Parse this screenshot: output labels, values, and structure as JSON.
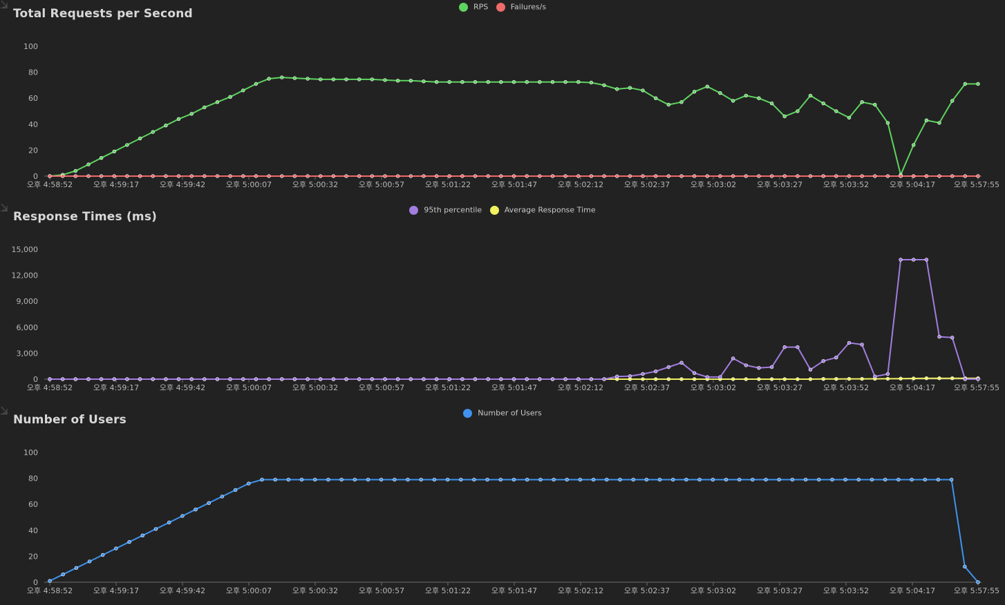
{
  "colors": {
    "background": "#222222",
    "axis": "#6e6e6e",
    "green": "#5fd35f",
    "red": "#ee6b6b",
    "purple": "#a27de0",
    "yellow": "#f0f060",
    "blue": "#3f93ee"
  },
  "icons": {
    "download": "download-icon"
  },
  "chart_data": [
    {
      "type": "line",
      "title": "Total Requests per Second",
      "ylim": [
        0,
        100
      ],
      "yticks": [
        "0",
        "20",
        "40",
        "60",
        "80",
        "100"
      ],
      "ytick_values": [
        0,
        20,
        40,
        60,
        80,
        100
      ],
      "x_tick_labels": [
        "오후 4:58:52",
        "오후 4:59:17",
        "오후 4:59:42",
        "오후 5:00:07",
        "오후 5:00:32",
        "오후 5:00:57",
        "오후 5:01:22",
        "오후 5:01:47",
        "오후 5:02:12",
        "오후 5:02:37",
        "오후 5:03:02",
        "오후 5:03:27",
        "오후 5:03:52",
        "오후 5:04:17",
        "오후 5:57:55"
      ],
      "legend_position": "top-center",
      "series": [
        {
          "name": "RPS",
          "color": "#5fd35f",
          "values": [
            0,
            1,
            4,
            9,
            14,
            19,
            24,
            29,
            34,
            39,
            44,
            48,
            53,
            57,
            61,
            66,
            71,
            75,
            76,
            75.5,
            75,
            74.5,
            74.5,
            74.5,
            74.5,
            74.5,
            74,
            73.5,
            73.5,
            73,
            72.5,
            72.5,
            72.5,
            72.5,
            72.5,
            72.5,
            72.5,
            72.5,
            72.5,
            72.5,
            72.5,
            72.5,
            72,
            70,
            67,
            68,
            66,
            60,
            55,
            57,
            65,
            69,
            64,
            58,
            62,
            60,
            56,
            46,
            50,
            62,
            56,
            50,
            45,
            57,
            55,
            41,
            1,
            24,
            43,
            41,
            58,
            71,
            71
          ]
        },
        {
          "name": "Failures/s",
          "color": "#ee6b6b",
          "values": [
            0,
            0,
            0,
            0,
            0,
            0,
            0,
            0,
            0,
            0,
            0,
            0,
            0,
            0,
            0,
            0,
            0,
            0,
            0,
            0,
            0,
            0,
            0,
            0,
            0,
            0,
            0,
            0,
            0,
            0,
            0,
            0,
            0,
            0,
            0,
            0,
            0,
            0,
            0,
            0,
            0,
            0,
            0,
            0,
            0,
            0,
            0,
            0,
            0,
            0,
            0,
            0,
            0,
            0,
            0,
            0,
            0,
            0,
            0,
            0,
            0,
            0,
            0,
            0,
            0,
            0,
            0,
            0,
            0,
            0,
            0,
            0,
            0
          ]
        }
      ]
    },
    {
      "type": "line",
      "title": "Response Times (ms)",
      "ylim": [
        0,
        15000
      ],
      "yticks": [
        "0",
        "3,000",
        "6,000",
        "9,000",
        "12,000",
        "15,000"
      ],
      "ytick_values": [
        0,
        3000,
        6000,
        9000,
        12000,
        15000
      ],
      "x_tick_labels": [
        "오후 4:58:52",
        "오후 4:59:17",
        "오후 4:59:42",
        "오후 5:00:07",
        "오후 5:00:32",
        "오후 5:00:57",
        "오후 5:01:22",
        "오후 5:01:47",
        "오후 5:02:12",
        "오후 5:02:37",
        "오후 5:03:02",
        "오후 5:03:27",
        "오후 5:03:52",
        "오후 5:04:17",
        "오후 5:57:55"
      ],
      "legend_position": "top-center",
      "series": [
        {
          "name": "95th percentile",
          "color": "#a27de0",
          "values": [
            0,
            0,
            0,
            0,
            0,
            0,
            0,
            0,
            0,
            0,
            0,
            0,
            0,
            0,
            0,
            0,
            0,
            0,
            0,
            0,
            0,
            0,
            0,
            0,
            0,
            0,
            0,
            0,
            0,
            0,
            0,
            0,
            0,
            0,
            0,
            0,
            0,
            0,
            0,
            0,
            0,
            0,
            0,
            0,
            300,
            350,
            600,
            900,
            1400,
            1900,
            700,
            250,
            250,
            2400,
            1600,
            1300,
            1400,
            3700,
            3700,
            1100,
            2100,
            2500,
            4200,
            4000,
            300,
            600,
            13800,
            13800,
            13800,
            4900,
            4800,
            0,
            0
          ]
        },
        {
          "name": "Average Response Time",
          "color": "#f0f060",
          "values": [
            0,
            0,
            0,
            0,
            0,
            0,
            0,
            0,
            0,
            0,
            0,
            0,
            0,
            0,
            0,
            0,
            0,
            0,
            0,
            0,
            0,
            0,
            0,
            0,
            0,
            0,
            0,
            0,
            0,
            0,
            0,
            0,
            0,
            0,
            0,
            0,
            0,
            0,
            0,
            0,
            0,
            0,
            0,
            0,
            0,
            0,
            0,
            0,
            0,
            0,
            0,
            0,
            0,
            0,
            0,
            0,
            0,
            0,
            0,
            0,
            20,
            20,
            30,
            30,
            40,
            50,
            60,
            80,
            100,
            100,
            100,
            100,
            100
          ]
        }
      ]
    },
    {
      "type": "line",
      "title": "Number of Users",
      "ylim": [
        0,
        100
      ],
      "yticks": [
        "0",
        "20",
        "40",
        "60",
        "80",
        "100"
      ],
      "ytick_values": [
        0,
        20,
        40,
        60,
        80,
        100
      ],
      "x_tick_labels": [
        "오후 4:58:52",
        "오후 4:59:17",
        "오후 4:59:42",
        "오후 5:00:07",
        "오후 5:00:32",
        "오후 5:00:57",
        "오후 5:01:22",
        "오후 5:01:47",
        "오후 5:02:12",
        "오후 5:02:37",
        "오후 5:03:02",
        "오후 5:03:27",
        "오후 5:03:52",
        "오후 5:04:17",
        "오후 5:57:55"
      ],
      "legend_position": "top-center",
      "series": [
        {
          "name": "Number of Users",
          "color": "#3f93ee",
          "values": [
            1,
            6,
            11,
            16,
            21,
            26,
            31,
            36,
            41,
            46,
            51,
            56,
            61,
            66,
            71,
            76,
            79,
            79,
            79,
            79,
            79,
            79,
            79,
            79,
            79,
            79,
            79,
            79,
            79,
            79,
            79,
            79,
            79,
            79,
            79,
            79,
            79,
            79,
            79,
            79,
            79,
            79,
            79,
            79,
            79,
            79,
            79,
            79,
            79,
            79,
            79,
            79,
            79,
            79,
            79,
            79,
            79,
            79,
            79,
            79,
            79,
            79,
            79,
            79,
            79,
            79,
            79,
            79,
            79,
            12,
            0
          ]
        }
      ]
    }
  ]
}
